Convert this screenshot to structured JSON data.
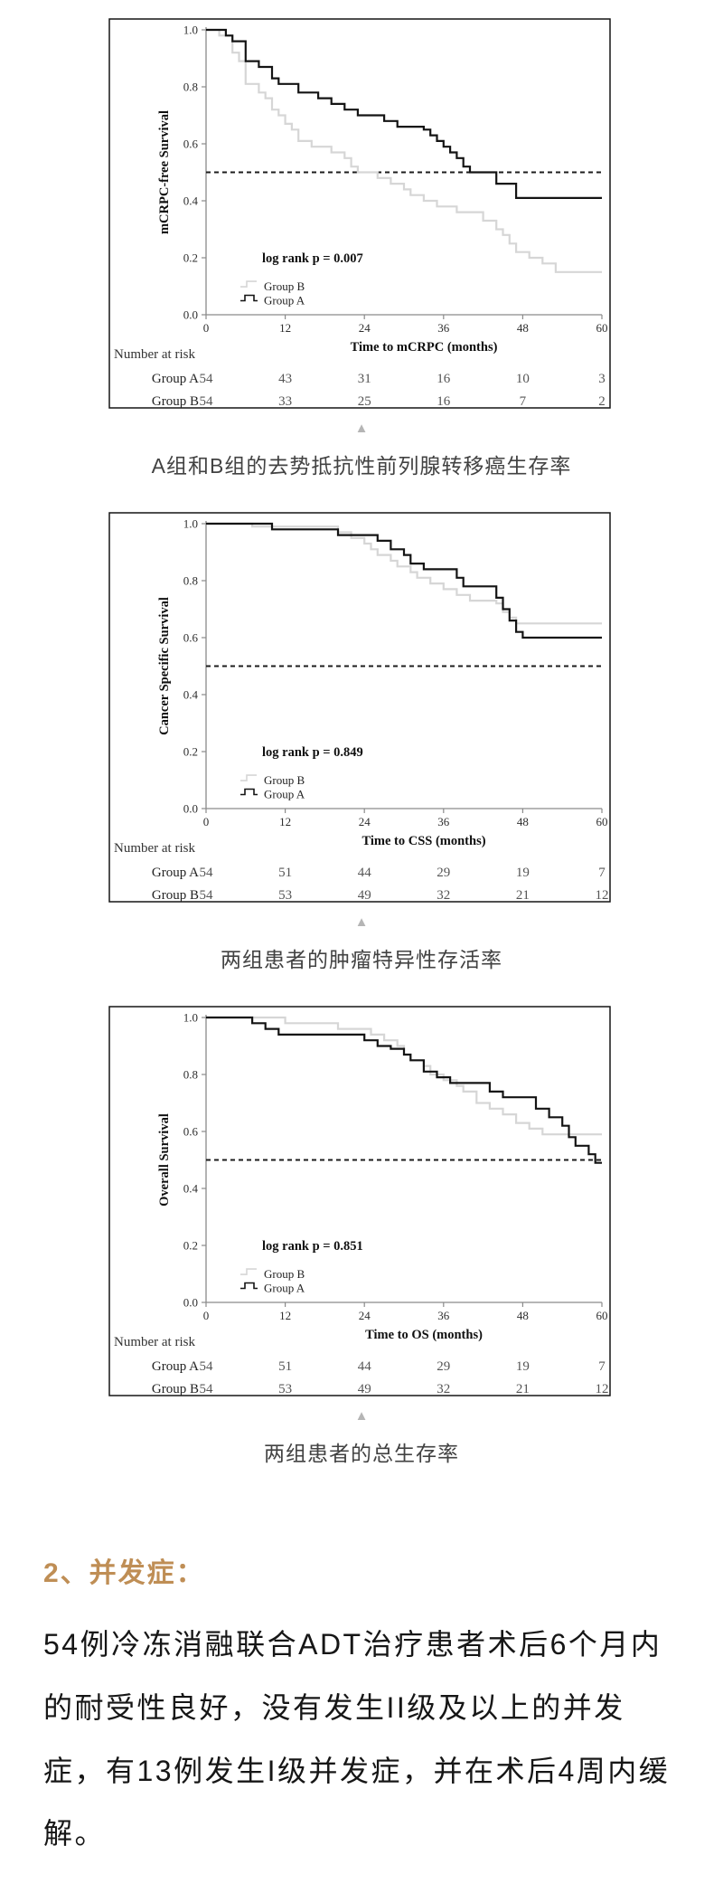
{
  "page": {
    "background": "#ffffff"
  },
  "icons": {
    "collapse_triangle": "▲"
  },
  "chart_data": [
    {
      "type": "line",
      "variant": "kaplan_meier_step",
      "ylabel": "mCRPC-free Survival",
      "xlabel": "Time to mCRPC (months)",
      "xlim": [
        0,
        60
      ],
      "ylim": [
        0.0,
        1.0
      ],
      "xticks": [
        "0",
        "12",
        "24",
        "36",
        "48",
        "60"
      ],
      "yticks": [
        "1.0",
        "0.8",
        "0.6",
        "0.4",
        "0.2",
        "0.0"
      ],
      "grid": false,
      "legend_position": "lower-left-inside",
      "pvalue_label": "log rank p = 0.007",
      "reference_line_y": 0.5,
      "legend": [
        {
          "label": "Group B",
          "color": "#d6d6d6"
        },
        {
          "label": "Group A",
          "color": "#141414"
        }
      ],
      "series": [
        {
          "name": "Group B",
          "color": "#d6d6d6",
          "steps": [
            [
              0,
              1.0
            ],
            [
              2,
              0.98
            ],
            [
              4,
              0.92
            ],
            [
              5,
              0.89
            ],
            [
              6,
              0.81
            ],
            [
              8,
              0.78
            ],
            [
              9,
              0.76
            ],
            [
              10,
              0.72
            ],
            [
              11,
              0.7
            ],
            [
              12,
              0.67
            ],
            [
              13,
              0.65
            ],
            [
              14,
              0.61
            ],
            [
              16,
              0.59
            ],
            [
              19,
              0.57
            ],
            [
              21,
              0.55
            ],
            [
              22,
              0.52
            ],
            [
              23,
              0.5
            ],
            [
              26,
              0.48
            ],
            [
              28,
              0.46
            ],
            [
              30,
              0.44
            ],
            [
              31,
              0.42
            ],
            [
              33,
              0.4
            ],
            [
              35,
              0.38
            ],
            [
              38,
              0.36
            ],
            [
              42,
              0.33
            ],
            [
              44,
              0.3
            ],
            [
              45,
              0.28
            ],
            [
              46,
              0.25
            ],
            [
              47,
              0.22
            ],
            [
              49,
              0.2
            ],
            [
              51,
              0.18
            ],
            [
              53,
              0.15
            ],
            [
              60,
              0.15
            ]
          ]
        },
        {
          "name": "Group A",
          "color": "#141414",
          "steps": [
            [
              0,
              1.0
            ],
            [
              3,
              0.98
            ],
            [
              4,
              0.96
            ],
            [
              6,
              0.89
            ],
            [
              8,
              0.87
            ],
            [
              10,
              0.83
            ],
            [
              11,
              0.81
            ],
            [
              14,
              0.78
            ],
            [
              17,
              0.76
            ],
            [
              19,
              0.74
            ],
            [
              21,
              0.72
            ],
            [
              23,
              0.7
            ],
            [
              27,
              0.68
            ],
            [
              29,
              0.66
            ],
            [
              33,
              0.65
            ],
            [
              34,
              0.63
            ],
            [
              35,
              0.61
            ],
            [
              36,
              0.59
            ],
            [
              37,
              0.57
            ],
            [
              38,
              0.55
            ],
            [
              39,
              0.52
            ],
            [
              40,
              0.5
            ],
            [
              44,
              0.46
            ],
            [
              47,
              0.41
            ],
            [
              60,
              0.41
            ]
          ]
        }
      ],
      "risk_table": {
        "title": "Number at risk",
        "time_points": [
          0,
          12,
          24,
          36,
          48,
          60
        ],
        "rows": [
          {
            "name": "Group A",
            "values": [
              "54",
              "43",
              "31",
              "16",
              "10",
              "3"
            ]
          },
          {
            "name": "Group B",
            "values": [
              "54",
              "33",
              "25",
              "16",
              "7",
              "2"
            ]
          }
        ]
      },
      "caption": "A组和B组的去势抵抗性前列腺转移癌生存率"
    },
    {
      "type": "line",
      "variant": "kaplan_meier_step",
      "ylabel": "Cancer Specific Survival",
      "xlabel": "Time to CSS (months)",
      "xlim": [
        0,
        60
      ],
      "ylim": [
        0.0,
        1.0
      ],
      "xticks": [
        "0",
        "12",
        "24",
        "36",
        "48",
        "60"
      ],
      "yticks": [
        "1.0",
        "0.8",
        "0.6",
        "0.4",
        "0.2",
        "0.0"
      ],
      "grid": false,
      "legend_position": "lower-left-inside",
      "pvalue_label": "log rank p = 0.849",
      "reference_line_y": 0.5,
      "legend": [
        {
          "label": "Group B",
          "color": "#d6d6d6"
        },
        {
          "label": "Group A",
          "color": "#141414"
        }
      ],
      "series": [
        {
          "name": "Group B",
          "color": "#d6d6d6",
          "steps": [
            [
              0,
              1.0
            ],
            [
              7,
              0.99
            ],
            [
              20,
              0.97
            ],
            [
              22,
              0.95
            ],
            [
              24,
              0.93
            ],
            [
              25,
              0.91
            ],
            [
              26,
              0.89
            ],
            [
              28,
              0.87
            ],
            [
              29,
              0.85
            ],
            [
              31,
              0.83
            ],
            [
              32,
              0.81
            ],
            [
              34,
              0.79
            ],
            [
              36,
              0.77
            ],
            [
              38,
              0.75
            ],
            [
              40,
              0.73
            ],
            [
              44,
              0.72
            ],
            [
              45,
              0.69
            ],
            [
              46,
              0.67
            ],
            [
              47,
              0.65
            ],
            [
              60,
              0.65
            ]
          ]
        },
        {
          "name": "Group A",
          "color": "#141414",
          "steps": [
            [
              0,
              1.0
            ],
            [
              10,
              0.98
            ],
            [
              20,
              0.96
            ],
            [
              26,
              0.94
            ],
            [
              28,
              0.91
            ],
            [
              30,
              0.89
            ],
            [
              31,
              0.86
            ],
            [
              33,
              0.84
            ],
            [
              38,
              0.81
            ],
            [
              39,
              0.78
            ],
            [
              44,
              0.74
            ],
            [
              45,
              0.7
            ],
            [
              46,
              0.66
            ],
            [
              47,
              0.62
            ],
            [
              48,
              0.6
            ],
            [
              60,
              0.6
            ]
          ]
        }
      ],
      "risk_table": {
        "title": "Number at risk",
        "time_points": [
          0,
          12,
          24,
          36,
          48,
          60
        ],
        "rows": [
          {
            "name": "Group A",
            "values": [
              "54",
              "51",
              "44",
              "29",
              "19",
              "7"
            ]
          },
          {
            "name": "Group B",
            "values": [
              "54",
              "53",
              "49",
              "32",
              "21",
              "12"
            ]
          }
        ]
      },
      "caption": "两组患者的肿瘤特异性存活率"
    },
    {
      "type": "line",
      "variant": "kaplan_meier_step",
      "ylabel": "Overall Survival",
      "xlabel": "Time to OS (months)",
      "xlim": [
        0,
        60
      ],
      "ylim": [
        0.0,
        1.0
      ],
      "xticks": [
        "0",
        "12",
        "24",
        "36",
        "48",
        "60"
      ],
      "yticks": [
        "1.0",
        "0.8",
        "0.6",
        "0.4",
        "0.2",
        "0.0"
      ],
      "grid": false,
      "legend_position": "lower-left-inside",
      "pvalue_label": "log rank p = 0.851",
      "reference_line_y": 0.5,
      "legend": [
        {
          "label": "Group B",
          "color": "#d6d6d6"
        },
        {
          "label": "Group A",
          "color": "#141414"
        }
      ],
      "series": [
        {
          "name": "Group B",
          "color": "#d6d6d6",
          "steps": [
            [
              0,
              1.0
            ],
            [
              12,
              0.98
            ],
            [
              20,
              0.96
            ],
            [
              25,
              0.94
            ],
            [
              27,
              0.92
            ],
            [
              29,
              0.9
            ],
            [
              30,
              0.87
            ],
            [
              31,
              0.85
            ],
            [
              33,
              0.83
            ],
            [
              34,
              0.8
            ],
            [
              36,
              0.78
            ],
            [
              38,
              0.76
            ],
            [
              39,
              0.74
            ],
            [
              41,
              0.7
            ],
            [
              43,
              0.68
            ],
            [
              45,
              0.66
            ],
            [
              47,
              0.63
            ],
            [
              49,
              0.61
            ],
            [
              51,
              0.59
            ],
            [
              60,
              0.59
            ]
          ]
        },
        {
          "name": "Group A",
          "color": "#141414",
          "steps": [
            [
              0,
              1.0
            ],
            [
              7,
              0.98
            ],
            [
              9,
              0.96
            ],
            [
              11,
              0.94
            ],
            [
              24,
              0.92
            ],
            [
              26,
              0.9
            ],
            [
              28,
              0.89
            ],
            [
              30,
              0.87
            ],
            [
              31,
              0.85
            ],
            [
              33,
              0.81
            ],
            [
              35,
              0.79
            ],
            [
              37,
              0.77
            ],
            [
              43,
              0.74
            ],
            [
              45,
              0.72
            ],
            [
              50,
              0.68
            ],
            [
              52,
              0.65
            ],
            [
              54,
              0.62
            ],
            [
              55,
              0.58
            ],
            [
              56,
              0.55
            ],
            [
              58,
              0.52
            ],
            [
              59,
              0.49
            ],
            [
              60,
              0.49
            ]
          ]
        }
      ],
      "risk_table": {
        "title": "Number at risk",
        "time_points": [
          0,
          12,
          24,
          36,
          48,
          60
        ],
        "rows": [
          {
            "name": "Group A",
            "values": [
              "54",
              "51",
              "44",
              "29",
              "19",
              "7"
            ]
          },
          {
            "name": "Group B",
            "values": [
              "54",
              "53",
              "49",
              "32",
              "21",
              "12"
            ]
          }
        ]
      },
      "caption": "两组患者的总生存率"
    }
  ],
  "section": {
    "heading": "2、并发症：",
    "heading_color": "#bf8e55",
    "paragraph": "54例冷冻消融联合ADT治疗患者术后6个月内的耐受性良好，没有发生II级及以上的并发症，有13例发生I级并发症，并在术后4周内缓解。"
  }
}
